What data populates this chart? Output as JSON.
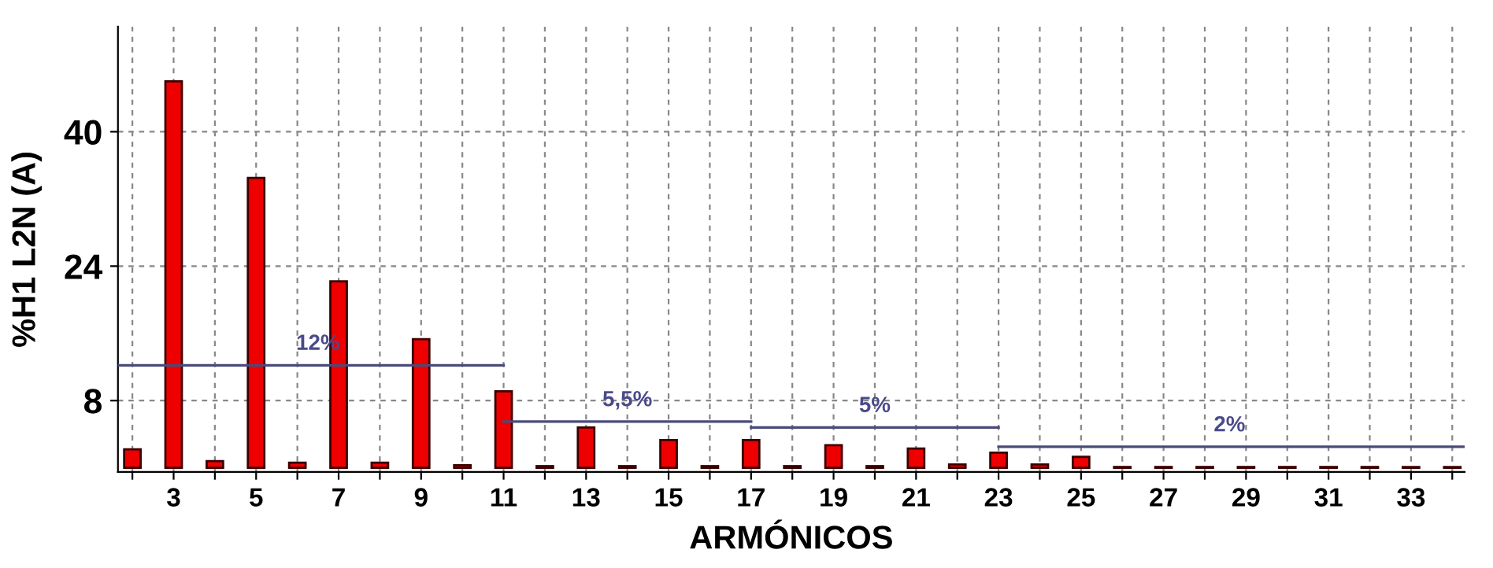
{
  "chart_data": {
    "type": "bar",
    "xlabel": "ARMÓNICOS",
    "ylabel": "%H1 L2N (A)",
    "x": [
      2,
      3,
      4,
      5,
      6,
      7,
      8,
      9,
      10,
      11,
      12,
      13,
      14,
      15,
      16,
      17,
      18,
      19,
      20,
      21,
      22,
      23,
      24,
      25,
      26,
      27,
      28,
      29,
      30,
      31,
      32,
      33,
      34
    ],
    "series": [
      {
        "color": "#ee0000",
        "values": [
          2.2,
          46.0,
          0.8,
          34.5,
          0.6,
          22.2,
          0.6,
          15.3,
          0.3,
          9.1,
          0.2,
          4.8,
          0.2,
          3.3,
          0.2,
          3.3,
          0.2,
          2.7,
          0.2,
          2.3,
          0.4,
          1.8,
          0.4,
          1.3,
          0.1,
          0.1,
          0.1,
          0.1,
          0.1,
          0.1,
          0.1,
          0.1,
          0.1
        ]
      },
      {
        "type": "line",
        "color": "#4a4a7a",
        "x": [
          1.65,
          11
        ],
        "values": [
          12.2,
          12.2
        ]
      },
      {
        "type": "line",
        "color": "#4a4a7a",
        "x": [
          11,
          17
        ],
        "values": [
          5.5,
          5.5
        ]
      },
      {
        "type": "line",
        "color": "#4a4a7a",
        "x": [
          17,
          23
        ],
        "values": [
          4.8,
          4.8
        ]
      },
      {
        "type": "line",
        "color": "#4a4a7a",
        "x": [
          23,
          34.3
        ],
        "values": [
          2.5,
          2.5
        ]
      }
    ],
    "annotations": [
      {
        "text": "12%",
        "x": 6.5,
        "y": 12.2
      },
      {
        "text": "5,5%",
        "x": 14,
        "y": 5.5
      },
      {
        "text": "5%",
        "x": 20,
        "y": 4.8
      },
      {
        "text": "2%",
        "x": 28.6,
        "y": 2.5
      }
    ],
    "xlim": [
      1.65,
      34.3
    ],
    "xticks": [
      {
        "value": 2,
        "label": null
      },
      3,
      {
        "value": 4,
        "label": null
      },
      5,
      {
        "value": 6,
        "label": null
      },
      7,
      {
        "value": 8,
        "label": null
      },
      9,
      {
        "value": 10,
        "label": null
      },
      11,
      {
        "value": 12,
        "label": null
      },
      13,
      {
        "value": 14,
        "label": null
      },
      15,
      {
        "value": 16,
        "label": null
      },
      17,
      {
        "value": 18,
        "label": null
      },
      19,
      {
        "value": 20,
        "label": null
      },
      21,
      {
        "value": 22,
        "label": null
      },
      23,
      {
        "value": 24,
        "label": null
      },
      25,
      {
        "value": 26,
        "label": null
      },
      27,
      {
        "value": 28,
        "label": null
      },
      29,
      {
        "value": 30,
        "label": null
      },
      31,
      {
        "value": 32,
        "label": null
      },
      33,
      {
        "value": 34,
        "label": null
      }
    ],
    "ylim": [
      -0.5,
      52.5
    ],
    "yticks": [
      8,
      24,
      40
    ],
    "grid": true,
    "legend": false
  }
}
